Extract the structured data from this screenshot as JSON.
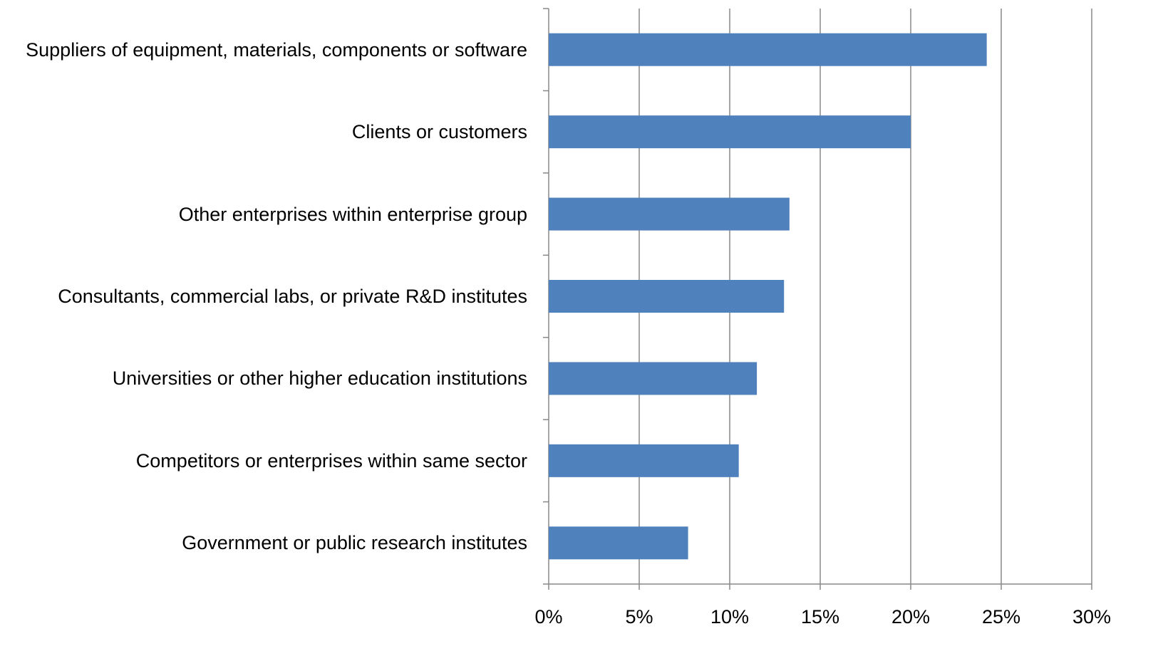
{
  "chart_data": {
    "type": "bar",
    "orientation": "horizontal",
    "categories": [
      "Suppliers of equipment, materials, components or software",
      "Clients or customers",
      "Other enterprises within enterprise group",
      "Consultants, commercial labs, or private R&D institutes",
      "Universities or other higher education institutions",
      "Competitors or enterprises within same sector",
      "Government or public research institutes"
    ],
    "values": [
      24.2,
      20.0,
      13.3,
      13.0,
      11.5,
      10.5,
      7.7
    ],
    "color": "#4f81bd",
    "xlim": [
      0,
      30
    ],
    "xticks": [
      {
        "value": 0,
        "label": "0%"
      },
      {
        "value": 5,
        "label": "5%"
      },
      {
        "value": 10,
        "label": "10%"
      },
      {
        "value": 15,
        "label": "15%"
      },
      {
        "value": 20,
        "label": "20%"
      },
      {
        "value": 25,
        "label": "25%"
      },
      {
        "value": 30,
        "label": "30%"
      }
    ],
    "grid": true
  }
}
